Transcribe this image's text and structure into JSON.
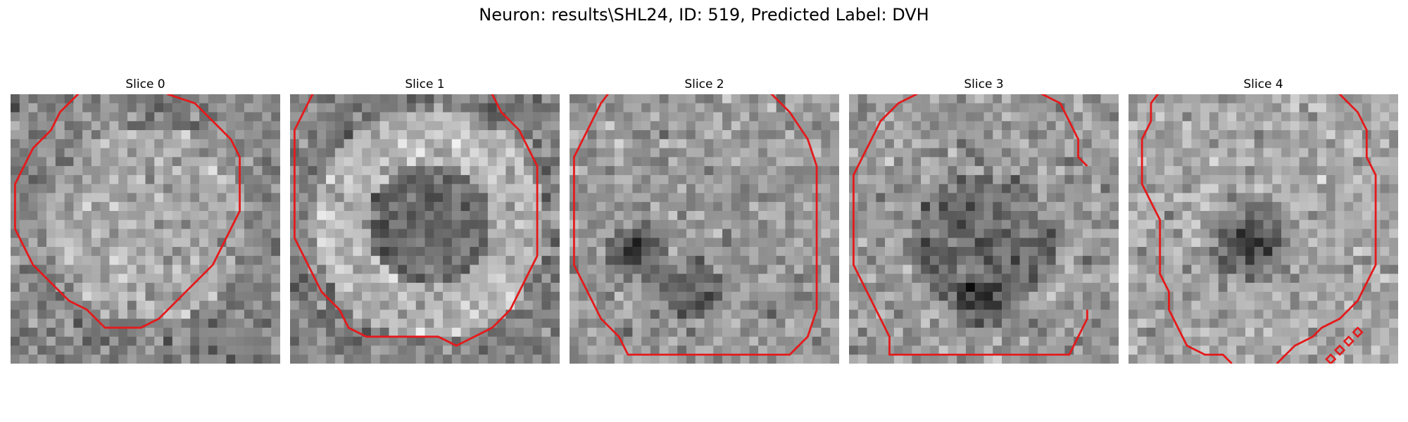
{
  "figure": {
    "title": "Neuron: results\\SHL24, ID: 519, Predicted Label: DVH"
  },
  "grid_size": 30,
  "contour_color": "#e41a1c",
  "panels": [
    {
      "title": "Slice 0",
      "seed": 11,
      "contour": [
        [
          7.5,
          0
        ],
        [
          10.5,
          -3
        ],
        [
          14.5,
          -3
        ],
        [
          17.5,
          0
        ],
        [
          20.5,
          1
        ],
        [
          22.5,
          3
        ],
        [
          24.5,
          5
        ],
        [
          25.5,
          7
        ],
        [
          25.5,
          13
        ],
        [
          24.5,
          15
        ],
        [
          23.5,
          17
        ],
        [
          22.5,
          19
        ],
        [
          20.5,
          21
        ],
        [
          18.5,
          23
        ],
        [
          16.5,
          25
        ],
        [
          14.5,
          26
        ],
        [
          10.5,
          26
        ],
        [
          8.5,
          24
        ],
        [
          6.5,
          23
        ],
        [
          4.5,
          21
        ],
        [
          2.5,
          19
        ],
        [
          1.5,
          17
        ],
        [
          0.5,
          15
        ],
        [
          0.5,
          10
        ],
        [
          1.5,
          8
        ],
        [
          2.5,
          6
        ],
        [
          4.5,
          4
        ],
        [
          5.5,
          2
        ]
      ]
    },
    {
      "title": "Slice 1",
      "seed": 23,
      "contour": [
        [
          5.5,
          -3
        ],
        [
          2.5,
          0
        ],
        [
          1.5,
          2
        ],
        [
          0.5,
          4
        ],
        [
          0.5,
          11
        ],
        [
          0.5,
          16
        ],
        [
          1.5,
          18
        ],
        [
          2.5,
          20
        ],
        [
          3.5,
          22
        ],
        [
          5.5,
          24
        ],
        [
          6.5,
          26
        ],
        [
          8.5,
          27
        ],
        [
          16.5,
          27
        ],
        [
          18.5,
          28
        ],
        [
          20.5,
          27
        ],
        [
          22.5,
          26
        ],
        [
          24.5,
          24
        ],
        [
          25.5,
          22
        ],
        [
          26.5,
          20
        ],
        [
          27.5,
          18
        ],
        [
          27.5,
          8
        ],
        [
          26.5,
          6
        ],
        [
          25.5,
          4
        ],
        [
          23.5,
          2
        ],
        [
          22.5,
          0
        ],
        [
          19.5,
          -3
        ]
      ]
    },
    {
      "title": "Slice 2",
      "seed": 37,
      "contour": [
        [
          6.5,
          -3
        ],
        [
          3.5,
          1
        ],
        [
          2.5,
          3
        ],
        [
          1.5,
          5
        ],
        [
          0.5,
          7
        ],
        [
          0.5,
          13
        ],
        [
          0.5,
          19
        ],
        [
          1.5,
          21
        ],
        [
          2.5,
          23
        ],
        [
          3.5,
          25
        ],
        [
          5.5,
          27
        ],
        [
          6.5,
          29
        ],
        [
          24.5,
          29
        ],
        [
          26.5,
          27
        ],
        [
          27.5,
          24
        ],
        [
          27.5,
          8
        ],
        [
          26.5,
          5
        ],
        [
          24.5,
          2
        ],
        [
          22.5,
          0
        ],
        [
          19.5,
          -3
        ]
      ]
    },
    {
      "title": "Slice 3",
      "seed": 41,
      "contour": [
        [
          26.5,
          8
        ],
        [
          25.5,
          7
        ],
        [
          25.5,
          5
        ],
        [
          24.5,
          3
        ],
        [
          23.5,
          1
        ],
        [
          21.5,
          0
        ],
        [
          20.5,
          -1
        ],
        [
          19.5,
          -2
        ],
        [
          15.5,
          -2
        ],
        [
          9.5,
          -2
        ],
        [
          8.5,
          -1
        ],
        [
          7.5,
          0
        ],
        [
          5.5,
          1
        ],
        [
          3.5,
          3
        ],
        [
          2.5,
          5
        ],
        [
          1.5,
          7
        ],
        [
          0.5,
          9
        ],
        [
          0.5,
          16
        ],
        [
          0.5,
          19
        ],
        [
          1.5,
          21
        ],
        [
          2.5,
          23
        ],
        [
          3.5,
          25
        ],
        [
          4.5,
          27
        ],
        [
          4.5,
          29
        ],
        [
          24.5,
          29
        ],
        [
          25.5,
          27
        ],
        [
          26.5,
          25
        ],
        [
          26.5,
          24
        ]
      ]
    },
    {
      "title": "Slice 4",
      "seed": 53,
      "contour": [
        [
          5.5,
          -3
        ],
        [
          2.5,
          1
        ],
        [
          2.5,
          3
        ],
        [
          1.5,
          5
        ],
        [
          1.5,
          10
        ],
        [
          2.5,
          12
        ],
        [
          3.5,
          14
        ],
        [
          3.5,
          20
        ],
        [
          4.5,
          22
        ],
        [
          4.5,
          24
        ],
        [
          5.5,
          26
        ],
        [
          6.5,
          28
        ],
        [
          8.5,
          29
        ],
        [
          10.5,
          29
        ],
        [
          11.5,
          30
        ]
      ]
    }
  ]
}
